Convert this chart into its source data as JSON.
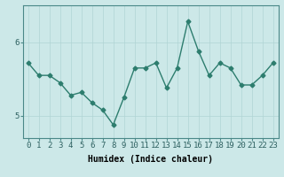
{
  "x": [
    0,
    1,
    2,
    3,
    4,
    5,
    6,
    7,
    8,
    9,
    10,
    11,
    12,
    13,
    14,
    15,
    16,
    17,
    18,
    19,
    20,
    21,
    22,
    23
  ],
  "y": [
    5.72,
    5.55,
    5.55,
    5.45,
    5.28,
    5.32,
    5.18,
    5.08,
    4.88,
    5.25,
    5.65,
    5.65,
    5.72,
    5.38,
    5.65,
    6.28,
    5.88,
    5.55,
    5.72,
    5.65,
    5.42,
    5.42,
    5.55,
    5.72
  ],
  "line_color": "#2d7d6e",
  "marker": "D",
  "marker_size": 2.5,
  "background_color": "#cce8e8",
  "grid_color": "#b0d4d4",
  "xlabel": "Humidex (Indice chaleur)",
  "ylim": [
    4.7,
    6.5
  ],
  "yticks": [
    5,
    6
  ],
  "xticks": [
    0,
    1,
    2,
    3,
    4,
    5,
    6,
    7,
    8,
    9,
    10,
    11,
    12,
    13,
    14,
    15,
    16,
    17,
    18,
    19,
    20,
    21,
    22,
    23
  ],
  "xlabel_fontsize": 7,
  "tick_fontsize": 6.5,
  "line_width": 1.0
}
